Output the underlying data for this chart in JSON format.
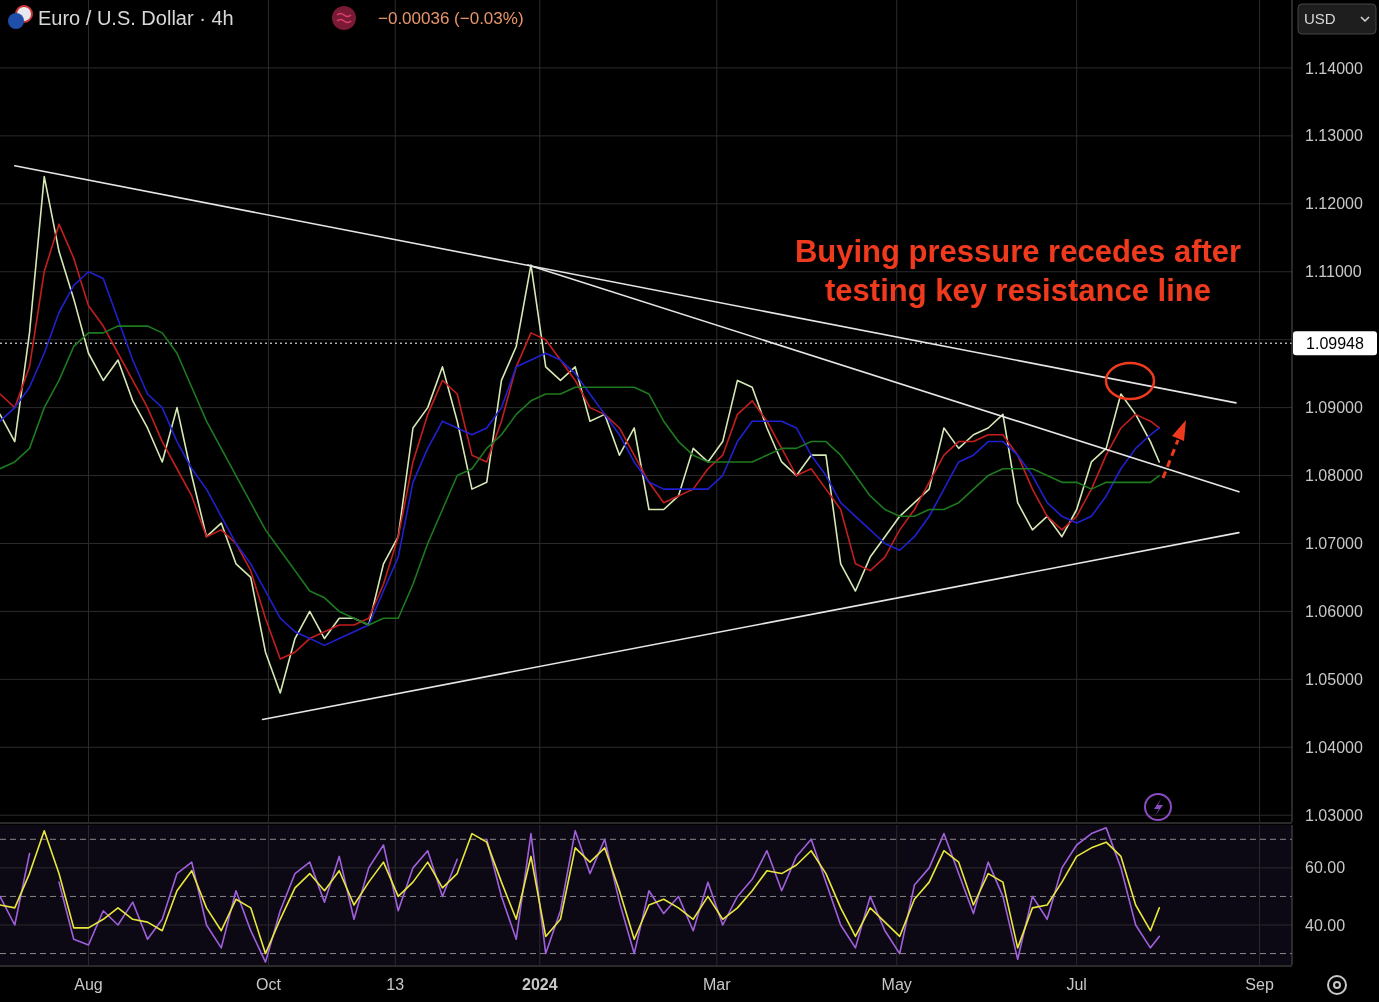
{
  "chart_data": [
    {
      "type": "line",
      "title": "Euro / U.S. Dollar · 4h",
      "subtitle": "−0.00036 (−0.03%)",
      "annotations": [
        "Buying pressure recedes after testing key resistance line",
        "USD"
      ],
      "x": [
        "2023-07-02",
        "2023-07-07",
        "2023-07-12",
        "2023-07-17",
        "2023-07-22",
        "2023-07-27",
        "2023-08-01",
        "2023-08-06",
        "2023-08-11",
        "2023-08-16",
        "2023-08-21",
        "2023-08-26",
        "2023-08-31",
        "2023-09-05",
        "2023-09-10",
        "2023-09-15",
        "2023-09-20",
        "2023-09-25",
        "2023-09-30",
        "2023-10-05",
        "2023-10-10",
        "2023-10-15",
        "2023-10-20",
        "2023-10-25",
        "2023-10-30",
        "2023-11-04",
        "2023-11-09",
        "2023-11-14",
        "2023-11-19",
        "2023-11-24",
        "2023-11-29",
        "2023-12-04",
        "2023-12-09",
        "2023-12-14",
        "2023-12-19",
        "2023-12-24",
        "2023-12-29",
        "2024-01-03",
        "2024-01-08",
        "2024-01-13",
        "2024-01-18",
        "2024-01-23",
        "2024-01-28",
        "2024-02-02",
        "2024-02-07",
        "2024-02-12",
        "2024-02-17",
        "2024-02-22",
        "2024-02-27",
        "2024-03-03",
        "2024-03-08",
        "2024-03-13",
        "2024-03-18",
        "2024-03-23",
        "2024-03-28",
        "2024-04-02",
        "2024-04-07",
        "2024-04-12",
        "2024-04-17",
        "2024-04-22",
        "2024-04-27",
        "2024-05-02",
        "2024-05-07",
        "2024-05-12",
        "2024-05-17",
        "2024-05-22",
        "2024-05-27",
        "2024-06-01",
        "2024-06-06",
        "2024-06-11",
        "2024-06-16",
        "2024-06-21",
        "2024-06-26",
        "2024-07-01",
        "2024-07-06",
        "2024-07-11",
        "2024-07-16",
        "2024-07-21",
        "2024-07-26",
        "2024-07-29"
      ],
      "series": [
        {
          "color": "#d6e8b4",
          "values": [
            1.089,
            1.085,
            1.101,
            1.124,
            1.113,
            1.106,
            1.098,
            1.094,
            1.097,
            1.091,
            1.087,
            1.082,
            1.09,
            1.08,
            1.071,
            1.073,
            1.067,
            1.065,
            1.054,
            1.048,
            1.056,
            1.06,
            1.056,
            1.059,
            1.059,
            1.058,
            1.067,
            1.071,
            1.087,
            1.09,
            1.096,
            1.088,
            1.078,
            1.079,
            1.094,
            1.099,
            1.111,
            1.096,
            1.094,
            1.096,
            1.088,
            1.089,
            1.083,
            1.087,
            1.075,
            1.075,
            1.077,
            1.084,
            1.082,
            1.085,
            1.094,
            1.093,
            1.087,
            1.082,
            1.08,
            1.083,
            1.083,
            1.067,
            1.063,
            1.068,
            1.071,
            1.074,
            1.076,
            1.078,
            1.087,
            1.084,
            1.086,
            1.087,
            1.089,
            1.076,
            1.072,
            1.074,
            1.071,
            1.075,
            1.082,
            1.084,
            1.092,
            1.089,
            1.085,
            1.082
          ]
        },
        {
          "color": "#c41e1e",
          "values": [
            1.092,
            1.09,
            1.096,
            1.11,
            1.117,
            1.112,
            1.105,
            1.102,
            1.098,
            1.094,
            1.09,
            1.085,
            1.081,
            1.077,
            1.071,
            1.072,
            1.07,
            1.066,
            1.059,
            1.053,
            1.054,
            1.056,
            1.057,
            1.058,
            1.058,
            1.059,
            1.064,
            1.071,
            1.082,
            1.089,
            1.094,
            1.092,
            1.083,
            1.082,
            1.088,
            1.096,
            1.101,
            1.1,
            1.097,
            1.094,
            1.09,
            1.089,
            1.087,
            1.083,
            1.079,
            1.076,
            1.077,
            1.078,
            1.081,
            1.083,
            1.089,
            1.091,
            1.088,
            1.084,
            1.08,
            1.081,
            1.078,
            1.075,
            1.067,
            1.066,
            1.068,
            1.072,
            1.075,
            1.079,
            1.083,
            1.085,
            1.085,
            1.086,
            1.086,
            1.083,
            1.078,
            1.074,
            1.072,
            1.074,
            1.078,
            1.083,
            1.087,
            1.089,
            1.088,
            1.087
          ]
        },
        {
          "color": "#2020d0",
          "values": [
            1.088,
            1.09,
            1.093,
            1.098,
            1.104,
            1.108,
            1.11,
            1.109,
            1.103,
            1.097,
            1.092,
            1.09,
            1.085,
            1.081,
            1.078,
            1.074,
            1.07,
            1.067,
            1.063,
            1.059,
            1.057,
            1.056,
            1.055,
            1.056,
            1.057,
            1.058,
            1.063,
            1.068,
            1.079,
            1.084,
            1.088,
            1.087,
            1.086,
            1.087,
            1.09,
            1.096,
            1.097,
            1.098,
            1.097,
            1.095,
            1.092,
            1.089,
            1.086,
            1.082,
            1.079,
            1.078,
            1.078,
            1.078,
            1.078,
            1.08,
            1.085,
            1.088,
            1.088,
            1.088,
            1.087,
            1.083,
            1.08,
            1.076,
            1.074,
            1.072,
            1.07,
            1.069,
            1.071,
            1.074,
            1.078,
            1.082,
            1.083,
            1.085,
            1.085,
            1.083,
            1.08,
            1.076,
            1.074,
            1.073,
            1.074,
            1.077,
            1.081,
            1.084,
            1.086,
            1.087
          ]
        },
        {
          "color": "#1e7a1e",
          "values": [
            1.081,
            1.082,
            1.084,
            1.09,
            1.094,
            1.099,
            1.101,
            1.101,
            1.102,
            1.102,
            1.102,
            1.101,
            1.098,
            1.093,
            1.088,
            1.084,
            1.08,
            1.076,
            1.072,
            1.069,
            1.066,
            1.063,
            1.062,
            1.06,
            1.059,
            1.058,
            1.059,
            1.059,
            1.064,
            1.07,
            1.075,
            1.08,
            1.081,
            1.084,
            1.086,
            1.089,
            1.091,
            1.092,
            1.092,
            1.093,
            1.093,
            1.093,
            1.093,
            1.093,
            1.092,
            1.088,
            1.085,
            1.083,
            1.082,
            1.082,
            1.082,
            1.082,
            1.083,
            1.084,
            1.084,
            1.085,
            1.085,
            1.083,
            1.08,
            1.077,
            1.075,
            1.074,
            1.074,
            1.075,
            1.075,
            1.076,
            1.078,
            1.08,
            1.081,
            1.081,
            1.081,
            1.08,
            1.079,
            1.079,
            1.078,
            1.079,
            1.079,
            1.079,
            1.079,
            1.08
          ]
        },
        {
          "color": "#e6e6e6",
          "x": [
            "2023-07-07",
            "2024-08-24"
          ],
          "values": [
            1.1256,
            1.0907
          ]
        },
        {
          "color": "#e6e6e6",
          "x": [
            "2023-12-28",
            "2024-08-25"
          ],
          "values": [
            1.111,
            1.0776
          ]
        },
        {
          "color": "#e6e6e6",
          "x": [
            "2023-09-29",
            "2024-08-25"
          ],
          "values": [
            1.0441,
            1.0716
          ]
        }
      ],
      "xlim": [
        "2023-07-02",
        "2024-09-12"
      ],
      "ylim": [
        1.029,
        1.15
      ],
      "xticks": [
        {
          "value": "2023-08-01",
          "label": null
        },
        {
          "value": "2023-10-01",
          "label": null
        },
        {
          "value": "2023-11-13",
          "label": null
        },
        {
          "value": "2024-01-01",
          "label": null
        },
        {
          "value": "2024-03-01",
          "label": null
        },
        {
          "value": "2024-05-01",
          "label": null
        },
        {
          "value": "2024-07-01",
          "label": null
        },
        {
          "value": "2024-09-01",
          "label": null
        }
      ],
      "yticks": [
        {
          "value": 1.03,
          "label": "1.03000"
        },
        {
          "value": 1.04,
          "label": "1.04000"
        },
        {
          "value": 1.05,
          "label": "1.05000"
        },
        {
          "value": 1.06,
          "label": "1.06000"
        },
        {
          "value": 1.07,
          "label": "1.07000"
        },
        {
          "value": 1.08,
          "label": "1.08000"
        },
        {
          "value": 1.09,
          "label": "1.09000"
        },
        {
          "value": 1.1,
          "label": null
        },
        {
          "value": 1.11,
          "label": "1.11000"
        },
        {
          "value": 1.12,
          "label": "1.12000"
        },
        {
          "value": 1.13,
          "label": "1.13000"
        },
        {
          "value": 1.14,
          "label": "1.14000"
        }
      ],
      "ref_lines": [
        {
          "axis": "y",
          "value": 1.09948,
          "label": "1.09948",
          "color": "#ffffff",
          "line_style": "dotted"
        }
      ],
      "grid": true,
      "tick_labels": "y"
    },
    {
      "type": "line",
      "x": [
        "2023-07-02",
        "2023-07-07",
        "2023-07-12",
        "2023-07-17",
        "2023-07-22",
        "2023-07-27",
        "2023-08-01",
        "2023-08-06",
        "2023-08-11",
        "2023-08-16",
        "2023-08-21",
        "2023-08-26",
        "2023-08-31",
        "2023-09-05",
        "2023-09-10",
        "2023-09-15",
        "2023-09-20",
        "2023-09-25",
        "2023-09-30",
        "2023-10-05",
        "2023-10-10",
        "2023-10-15",
        "2023-10-20",
        "2023-10-25",
        "2023-10-30",
        "2023-11-04",
        "2023-11-09",
        "2023-11-14",
        "2023-11-19",
        "2023-11-24",
        "2023-11-29",
        "2023-12-04",
        "2023-12-09",
        "2023-12-14",
        "2023-12-19",
        "2023-12-24",
        "2023-12-29",
        "2024-01-03",
        "2024-01-08",
        "2024-01-13",
        "2024-01-18",
        "2024-01-23",
        "2024-01-28",
        "2024-02-02",
        "2024-02-07",
        "2024-02-12",
        "2024-02-17",
        "2024-02-22",
        "2024-02-27",
        "2024-03-03",
        "2024-03-08",
        "2024-03-13",
        "2024-03-18",
        "2024-03-23",
        "2024-03-28",
        "2024-04-02",
        "2024-04-07",
        "2024-04-12",
        "2024-04-17",
        "2024-04-22",
        "2024-04-27",
        "2024-05-02",
        "2024-05-07",
        "2024-05-12",
        "2024-05-17",
        "2024-05-22",
        "2024-05-27",
        "2024-06-01",
        "2024-06-06",
        "2024-06-11",
        "2024-06-16",
        "2024-06-21",
        "2024-06-26",
        "2024-07-01",
        "2024-07-06",
        "2024-07-11",
        "2024-07-16",
        "2024-07-21",
        "2024-07-26",
        "2024-07-29"
      ],
      "series": [
        {
          "color": "#a060dc",
          "values": [
            50,
            40,
            65,
            null,
            55,
            35,
            33,
            45,
            40,
            48,
            35,
            42,
            58,
            62,
            40,
            32,
            52,
            38,
            27,
            45,
            58,
            62,
            48,
            64,
            42,
            60,
            68,
            45,
            60,
            66,
            50,
            63,
            null,
            70,
            50,
            35,
            72,
            30,
            45,
            73,
            58,
            70,
            48,
            30,
            52,
            44,
            50,
            38,
            55,
            40,
            50,
            56,
            66,
            52,
            64,
            70,
            55,
            40,
            32,
            50,
            38,
            30,
            54,
            60,
            72,
            58,
            44,
            62,
            50,
            28,
            50,
            42,
            60,
            68,
            72,
            74,
            60,
            40,
            32,
            36
          ]
        },
        {
          "color": "#e8e83c",
          "values": [
            47,
            46,
            58,
            73,
            58,
            39,
            39,
            42,
            46,
            42,
            41,
            38,
            52,
            59,
            46,
            38,
            49,
            46,
            30,
            42,
            53,
            58,
            52,
            59,
            47,
            55,
            62,
            50,
            55,
            62,
            53,
            58,
            72,
            69,
            55,
            42,
            64,
            36,
            42,
            67,
            62,
            67,
            52,
            35,
            47,
            49,
            46,
            42,
            50,
            42,
            46,
            52,
            59,
            58,
            61,
            66,
            58,
            46,
            36,
            46,
            41,
            36,
            49,
            55,
            66,
            62,
            47,
            58,
            55,
            32,
            46,
            47,
            55,
            64,
            67,
            69,
            64,
            47,
            38,
            46
          ]
        }
      ],
      "xlim": [
        "2023-07-02",
        "2024-09-12"
      ],
      "ylim": [
        26,
        75
      ],
      "xticks": [
        {
          "value": "2023-08-01",
          "label": "Aug"
        },
        {
          "value": "2023-10-01",
          "label": "Oct"
        },
        {
          "value": "2023-11-13",
          "label": "13"
        },
        {
          "value": "2024-01-01",
          "label": "2024"
        },
        {
          "value": "2024-03-01",
          "label": "Mar"
        },
        {
          "value": "2024-05-01",
          "label": "May"
        },
        {
          "value": "2024-07-01",
          "label": "Jul"
        },
        {
          "value": "2024-09-01",
          "label": "Sep"
        }
      ],
      "yticks": [
        {
          "value": 40,
          "label": "40.00"
        },
        {
          "value": 60,
          "label": "60.00"
        }
      ],
      "ref_lines": [
        {
          "axis": "y",
          "value": 30,
          "color": "#8a8a8a",
          "line_style": "dashed"
        },
        {
          "axis": "y",
          "value": 50,
          "color": "#8a8a8a",
          "line_style": "dashed"
        },
        {
          "axis": "y",
          "value": 70,
          "color": "#8a8a8a",
          "line_style": "dashed"
        }
      ],
      "grid": true
    }
  ]
}
